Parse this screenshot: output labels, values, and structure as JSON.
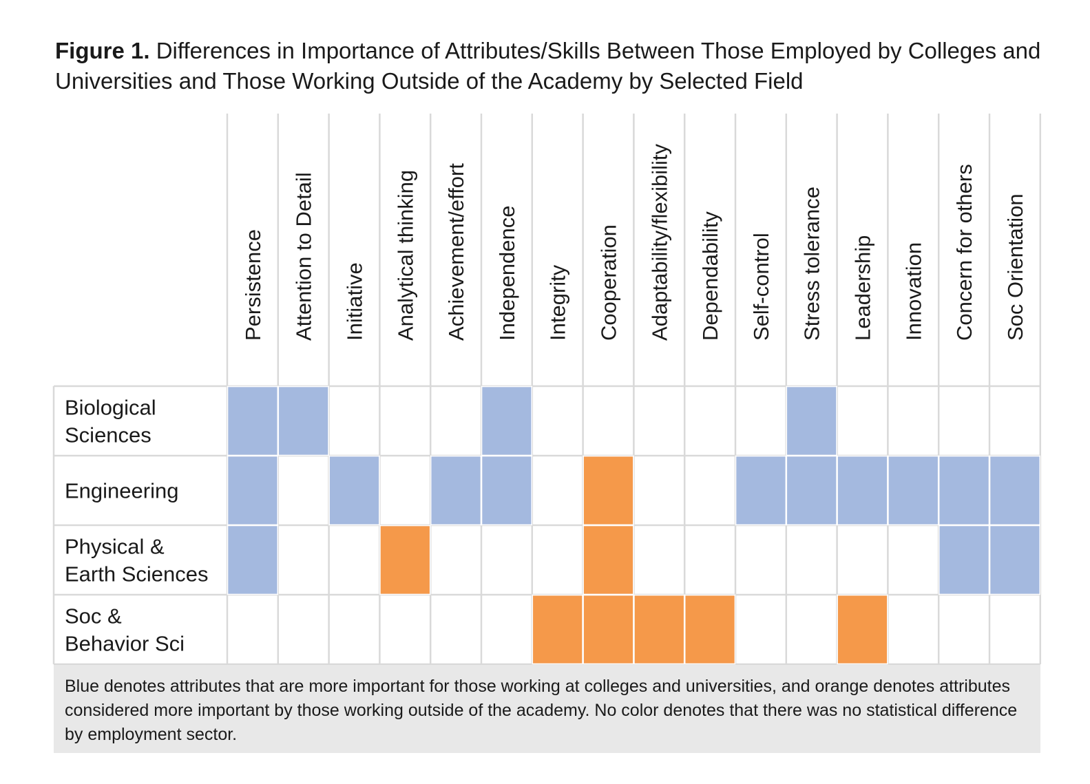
{
  "figure_label": "Figure 1.",
  "title": "Differences in Importance of Attributes/Skills Between Those Employed by Colleges and Universities and Those Working Outside of the Academy by Selected Field",
  "note": "Blue denotes attributes that are more important for those working at colleges and universities, and orange denotes attributes considered more important by those working outside of the academy. No color denotes that there was no statistical difference by employment sector.",
  "colors": {
    "academy": "#a4b9df",
    "outside": "#f5994a",
    "none": "#ffffff",
    "grid": "#d9d9d9"
  },
  "chart_data": {
    "type": "heatmap",
    "columns": [
      "Persistence",
      "Attention to Detail",
      "Initiative",
      "Analytical thinking",
      "Achievement/effort",
      "Independence",
      "Integrity",
      "Cooperation",
      "Adaptability/flexibility",
      "Dependability",
      "Self-control",
      "Stress tolerance",
      "Leadership",
      "Innovation",
      "Concern for others",
      "Soc Orientation"
    ],
    "rows": [
      {
        "label": [
          "Biological",
          "Sciences"
        ],
        "values": [
          "academy",
          "academy",
          "none",
          "none",
          "none",
          "academy",
          "none",
          "none",
          "none",
          "none",
          "none",
          "academy",
          "none",
          "none",
          "none",
          "none"
        ]
      },
      {
        "label": [
          "Engineering"
        ],
        "values": [
          "academy",
          "none",
          "academy",
          "none",
          "academy",
          "academy",
          "none",
          "outside",
          "none",
          "none",
          "academy",
          "academy",
          "academy",
          "academy",
          "academy",
          "academy"
        ]
      },
      {
        "label": [
          "Physical &",
          "Earth Sciences"
        ],
        "values": [
          "academy",
          "none",
          "none",
          "outside",
          "none",
          "none",
          "none",
          "outside",
          "none",
          "none",
          "none",
          "none",
          "none",
          "none",
          "academy",
          "academy"
        ]
      },
      {
        "label": [
          "Soc &",
          "Behavior Sci"
        ],
        "values": [
          "none",
          "none",
          "none",
          "none",
          "none",
          "none",
          "outside",
          "outside",
          "outside",
          "outside",
          "none",
          "none",
          "outside",
          "none",
          "none",
          "none"
        ]
      }
    ]
  }
}
